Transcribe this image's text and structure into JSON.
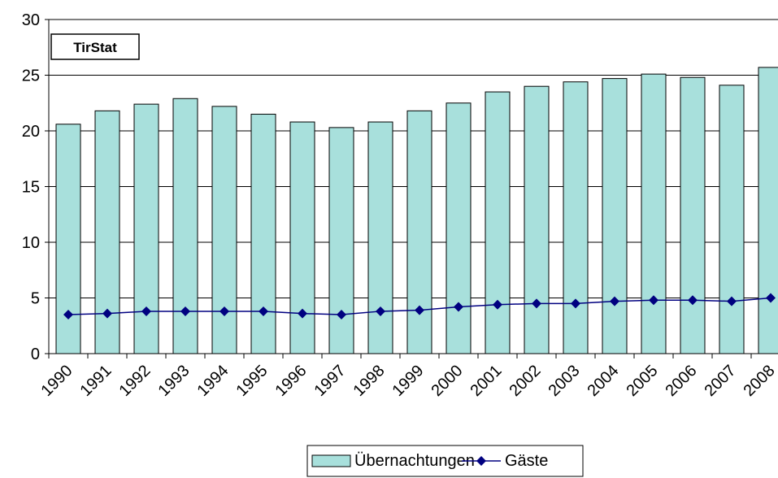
{
  "chart_data": {
    "type": "bar",
    "badge": "TirStat",
    "categories": [
      "1990",
      "1991",
      "1992",
      "1993",
      "1994",
      "1995",
      "1996",
      "1997",
      "1998",
      "1999",
      "2000",
      "2001",
      "2002",
      "2003",
      "2004",
      "2005",
      "2006",
      "2007",
      "2008"
    ],
    "series": [
      {
        "name": "Übernachtungen",
        "type": "bar",
        "color": "#a8e0dc",
        "values": [
          20.6,
          21.8,
          22.4,
          22.9,
          22.2,
          21.5,
          20.8,
          20.3,
          20.8,
          21.8,
          22.5,
          23.5,
          24.0,
          24.4,
          24.7,
          25.1,
          24.8,
          24.1,
          25.7
        ]
      },
      {
        "name": "Gäste",
        "type": "line",
        "color": "#000080",
        "values": [
          3.5,
          3.6,
          3.8,
          3.8,
          3.8,
          3.8,
          3.6,
          3.5,
          3.8,
          3.9,
          4.2,
          4.4,
          4.5,
          4.5,
          4.7,
          4.8,
          4.8,
          4.7,
          5.0
        ]
      }
    ],
    "y_ticks": [
      "0",
      "5",
      "10",
      "15",
      "20",
      "25",
      "30"
    ],
    "ylim": [
      0,
      30
    ],
    "grid": true,
    "legend_position": "bottom"
  }
}
